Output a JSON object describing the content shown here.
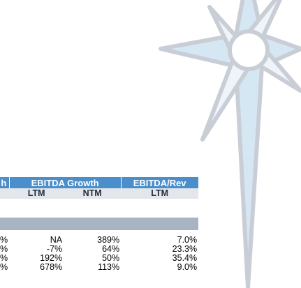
{
  "table": {
    "header": [
      "h",
      "EBITDA Growth",
      "EBITDA/Rev"
    ],
    "subheader": [
      "LTM",
      "NTM",
      "LTM"
    ],
    "rows": [
      [
        "%",
        "NA",
        "389%",
        "7.0%"
      ],
      [
        "%",
        "-7%",
        "64%",
        "23.3%"
      ],
      [
        "%",
        "192%",
        "50%",
        "35.4%"
      ],
      [
        "%",
        "678%",
        "113%",
        "9.0%"
      ]
    ]
  }
}
